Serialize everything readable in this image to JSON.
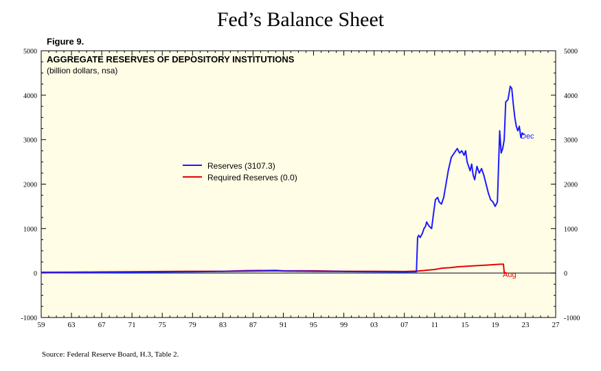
{
  "header": {
    "title": "Fed’s Balance Sheet",
    "figure_label": "Figure 9."
  },
  "footer": {
    "source": "Source: Federal Reserve Board, H.3, Table 2."
  },
  "colors": {
    "background": "#fffde6",
    "reserves": "#1a1aff",
    "required": "#e60000",
    "zero_line": "#000000"
  },
  "chart_data": {
    "type": "line",
    "title": "AGGREGATE RESERVES OF DEPOSITORY INSTITUTIONS",
    "subtitle": "(billion dollars, nsa)",
    "xlim": [
      1959,
      2027
    ],
    "ylim": [
      -1000,
      5000
    ],
    "x_ticks": [
      1959,
      1963,
      1967,
      1971,
      1975,
      1979,
      1983,
      1987,
      1991,
      1995,
      1999,
      2003,
      2007,
      2011,
      2015,
      2019,
      2023,
      2027
    ],
    "x_tick_labels": [
      "59",
      "63",
      "67",
      "71",
      "75",
      "79",
      "83",
      "87",
      "91",
      "95",
      "99",
      "03",
      "07",
      "11",
      "15",
      "19",
      "23",
      "27"
    ],
    "y_ticks": [
      -1000,
      0,
      1000,
      2000,
      3000,
      4000,
      5000
    ],
    "y_tick_labels": [
      "-1000",
      "0",
      "1000",
      "2000",
      "3000",
      "4000",
      "5000"
    ],
    "legend": {
      "placement": "center-left",
      "entries": [
        "Reserves (3107.3)",
        "Required Reserves (0.0)"
      ]
    },
    "annotations": [
      {
        "text": "Dec",
        "series": "Reserves"
      },
      {
        "text": "Aug",
        "series": "Required Reserves"
      }
    ],
    "series": [
      {
        "name": "Reserves",
        "color": "#1a1aff",
        "x": [
          1959,
          1963,
          1967,
          1971,
          1975,
          1979,
          1983,
          1987,
          1990,
          1991,
          1995,
          1999,
          2003,
          2007,
          2008.6,
          2008.75,
          2008.9,
          2009.1,
          2009.4,
          2009.6,
          2009.8,
          2009.95,
          2010.1,
          2010.3,
          2010.6,
          2010.9,
          2011.1,
          2011.4,
          2011.6,
          2011.9,
          2012.2,
          2012.5,
          2012.8,
          2013.2,
          2013.6,
          2014.0,
          2014.3,
          2014.6,
          2014.9,
          2015.1,
          2015.3,
          2015.5,
          2015.7,
          2015.9,
          2016.1,
          2016.3,
          2016.6,
          2016.9,
          2017.2,
          2017.5,
          2017.8,
          2018.1,
          2018.4,
          2018.7,
          2019.0,
          2019.3,
          2019.6,
          2019.8,
          2020.0,
          2020.2,
          2020.4,
          2020.7,
          2021.0,
          2021.2,
          2021.4,
          2021.6,
          2021.8,
          2022.0,
          2022.2,
          2022.4,
          2022.6,
          2022.8
        ],
        "values": [
          10,
          12,
          15,
          20,
          25,
          30,
          38,
          45,
          50,
          45,
          40,
          35,
          30,
          25,
          30,
          800,
          850,
          800,
          900,
          1000,
          1050,
          1150,
          1100,
          1050,
          1000,
          1400,
          1650,
          1700,
          1600,
          1550,
          1700,
          2000,
          2300,
          2600,
          2700,
          2800,
          2700,
          2750,
          2650,
          2750,
          2500,
          2400,
          2300,
          2450,
          2200,
          2100,
          2400,
          2250,
          2350,
          2200,
          2000,
          1800,
          1650,
          1600,
          1500,
          1600,
          3200,
          2700,
          2800,
          3000,
          3850,
          3900,
          4200,
          4150,
          3800,
          3500,
          3300,
          3200,
          3300,
          3050,
          3150,
          3107.3
        ]
      },
      {
        "name": "Required Reserves",
        "color": "#e60000",
        "x": [
          1959,
          1963,
          1967,
          1971,
          1975,
          1979,
          1983,
          1986,
          1990,
          1991,
          1995,
          1999,
          2003,
          2007,
          2008.8,
          2010,
          2011,
          2012,
          2013,
          2014,
          2015,
          2016,
          2017,
          2018,
          2019,
          2019.8,
          2020.1,
          2020.2,
          2020.6
        ],
        "values": [
          18,
          20,
          25,
          30,
          35,
          40,
          40,
          55,
          60,
          50,
          50,
          40,
          40,
          35,
          45,
          65,
          80,
          110,
          120,
          140,
          150,
          160,
          170,
          180,
          190,
          200,
          200,
          0,
          0
        ]
      }
    ]
  }
}
